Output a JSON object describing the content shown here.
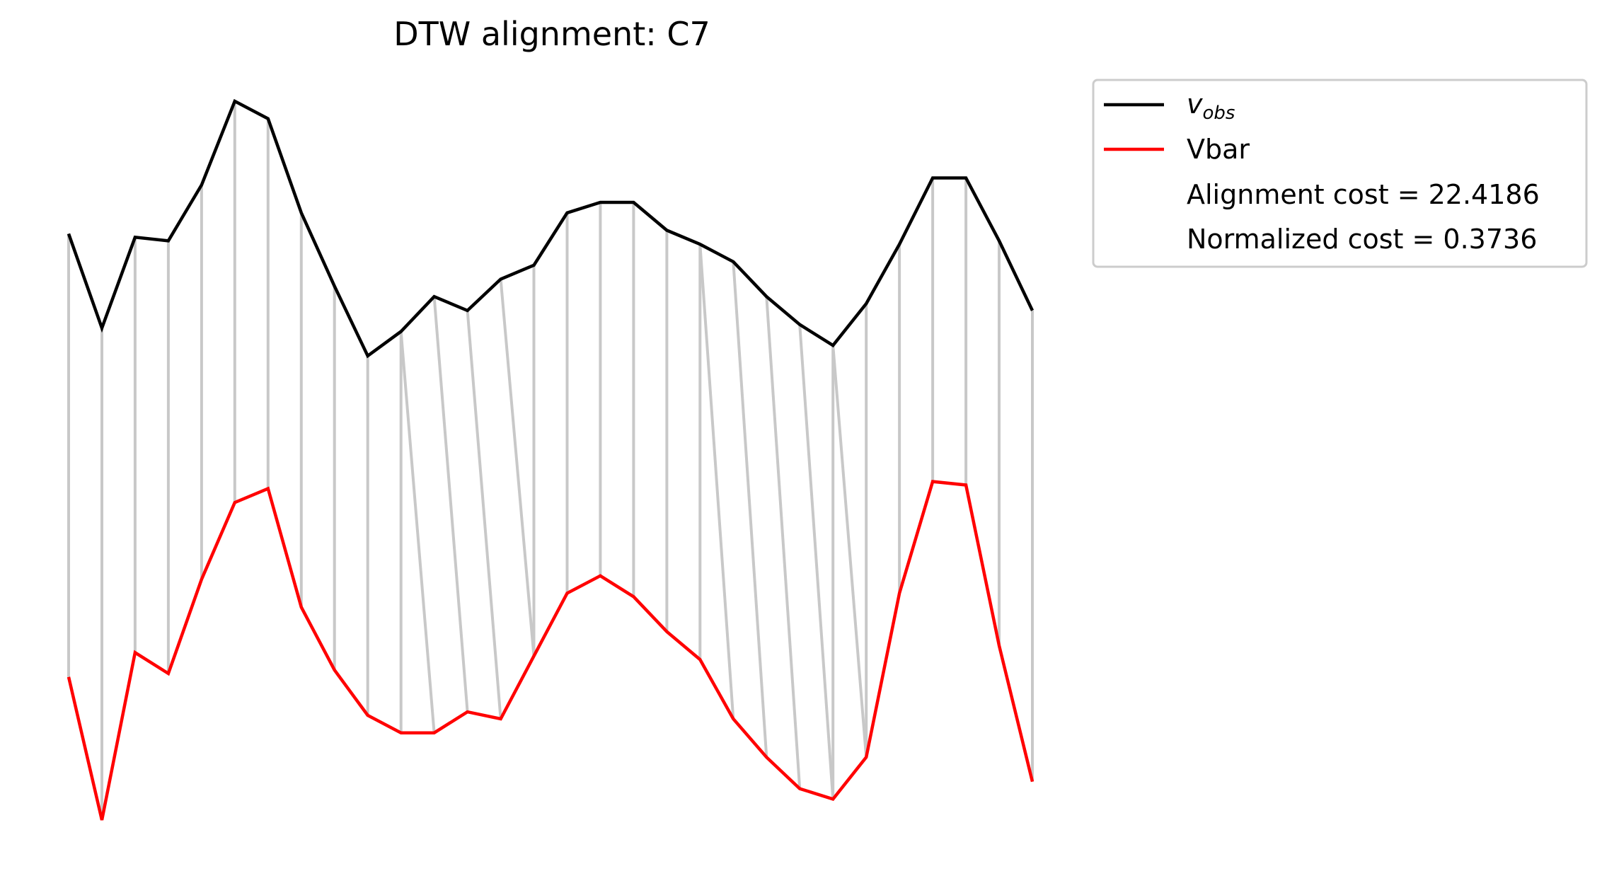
{
  "chart_data": {
    "type": "line",
    "title": "DTW alignment: C7",
    "xlabel": "",
    "ylabel": "",
    "axes_visible": false,
    "grid": false,
    "legend_position": "upper right, outside plot",
    "x": [
      0,
      1,
      2,
      3,
      4,
      5,
      6,
      7,
      8,
      9,
      10,
      11,
      12,
      13,
      14,
      15,
      16,
      17,
      18,
      19,
      20,
      21,
      22,
      23,
      24,
      25,
      26,
      27,
      28,
      29
    ],
    "series": [
      {
        "name": "v_obs",
        "name_base": "v",
        "name_sub": "obs",
        "color": "#000000",
        "values": [
          1.22,
          0.95,
          1.21,
          1.2,
          1.36,
          1.6,
          1.55,
          1.28,
          1.07,
          0.87,
          0.94,
          1.04,
          1.0,
          1.09,
          1.13,
          1.28,
          1.31,
          1.31,
          1.23,
          1.19,
          1.14,
          1.04,
          0.96,
          0.9,
          1.02,
          1.19,
          1.38,
          1.38,
          1.2,
          1.0
        ]
      },
      {
        "name": "Vbar",
        "color": "#ff0000",
        "values": [
          -0.05,
          -0.46,
          0.02,
          -0.04,
          0.23,
          0.45,
          0.49,
          0.15,
          -0.03,
          -0.16,
          -0.21,
          -0.21,
          -0.15,
          -0.17,
          0.01,
          0.19,
          0.24,
          0.18,
          0.08,
          0.0,
          -0.17,
          -0.28,
          -0.37,
          -0.4,
          -0.28,
          0.19,
          0.51,
          0.5,
          0.04,
          -0.35
        ]
      }
    ],
    "alignment_color": "#c8c8c8",
    "alignment_pairs": [
      [
        0,
        0
      ],
      [
        1,
        1
      ],
      [
        2,
        2
      ],
      [
        3,
        3
      ],
      [
        4,
        4
      ],
      [
        5,
        5
      ],
      [
        6,
        6
      ],
      [
        7,
        7
      ],
      [
        8,
        8
      ],
      [
        9,
        9
      ],
      [
        10,
        10
      ],
      [
        10,
        11
      ],
      [
        11,
        12
      ],
      [
        12,
        13
      ],
      [
        13,
        14
      ],
      [
        14,
        14
      ],
      [
        15,
        15
      ],
      [
        16,
        16
      ],
      [
        17,
        17
      ],
      [
        18,
        18
      ],
      [
        19,
        19
      ],
      [
        19,
        20
      ],
      [
        20,
        21
      ],
      [
        21,
        22
      ],
      [
        22,
        23
      ],
      [
        23,
        23
      ],
      [
        23,
        24
      ],
      [
        24,
        24
      ],
      [
        25,
        25
      ],
      [
        26,
        26
      ],
      [
        27,
        27
      ],
      [
        28,
        28
      ],
      [
        29,
        29
      ]
    ],
    "legend_entries": [
      {
        "label": "v",
        "sub": "obs",
        "color": "#000000"
      },
      {
        "label": "Vbar",
        "color": "#ff0000"
      },
      {
        "label": "Alignment cost = 22.4186"
      },
      {
        "label": "Normalized cost = 0.3736"
      }
    ]
  }
}
